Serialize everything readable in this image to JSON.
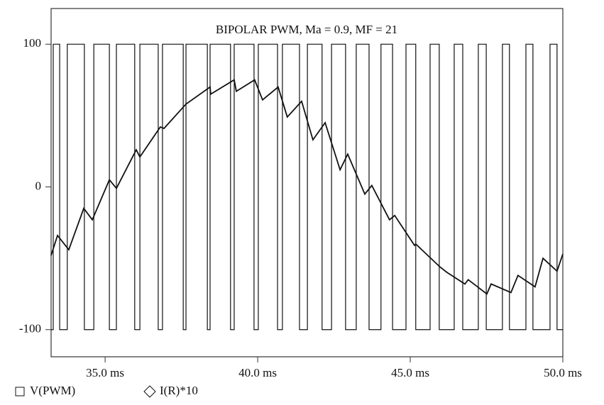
{
  "chart_data": {
    "type": "line",
    "title": "BIPOLAR PWM, Ma = 0.9, MF = 21",
    "xlim": [
      33.23,
      50
    ],
    "xticks": [
      {
        "value": 35,
        "label": "35.0 ms"
      },
      {
        "value": 40,
        "label": "40.0 ms"
      },
      {
        "value": 45,
        "label": "45.0 ms"
      },
      {
        "value": 50,
        "label": "50.0 ms"
      }
    ],
    "ylim": [
      -119,
      125
    ],
    "yticks": [
      100,
      0,
      -100
    ],
    "series": [
      {
        "name": "V(PWM)",
        "color": "#111111",
        "marker": "square",
        "x": [
          33.23,
          33.3,
          33.3,
          33.51,
          33.51,
          33.76,
          33.76,
          34.32,
          34.32,
          34.63,
          34.63,
          35.14,
          35.14,
          35.37,
          35.37,
          35.97,
          35.97,
          36.14,
          36.14,
          36.74,
          36.74,
          36.88,
          36.88,
          37.56,
          37.56,
          37.65,
          37.65,
          38.35,
          38.35,
          38.44,
          38.44,
          39.11,
          39.11,
          39.23,
          39.23,
          39.88,
          39.88,
          40.02,
          40.02,
          40.65,
          40.65,
          40.81,
          40.81,
          41.37,
          41.37,
          41.63,
          41.63,
          42.11,
          42.11,
          42.42,
          42.42,
          42.88,
          42.88,
          43.23,
          43.23,
          43.65,
          43.65,
          44.04,
          44.04,
          44.42,
          44.42,
          44.86,
          44.86,
          45.18,
          45.18,
          45.65,
          45.65,
          45.95,
          45.95,
          46.44,
          46.44,
          46.72,
          46.72,
          47.23,
          47.23,
          47.49,
          47.49,
          48.02,
          48.02,
          48.25,
          48.25,
          48.79,
          48.79,
          49.02,
          49.02,
          49.58,
          49.58,
          49.81,
          49.81,
          50
        ],
        "values": [
          -100,
          -100,
          100,
          100,
          -100,
          -100,
          100,
          100,
          -100,
          -100,
          100,
          100,
          -100,
          -100,
          100,
          100,
          -100,
          -100,
          100,
          100,
          -100,
          -100,
          100,
          100,
          -100,
          -100,
          100,
          100,
          -100,
          -100,
          100,
          100,
          -100,
          -100,
          100,
          100,
          -100,
          -100,
          100,
          100,
          -100,
          -100,
          100,
          100,
          -100,
          -100,
          100,
          100,
          -100,
          -100,
          100,
          100,
          -100,
          -100,
          100,
          100,
          -100,
          -100,
          100,
          100,
          -100,
          -100,
          100,
          100,
          -100,
          -100,
          100,
          100,
          -100,
          -100,
          100,
          100,
          -100,
          -100,
          100,
          100,
          -100,
          -100,
          100,
          100,
          -100,
          -100,
          100,
          100,
          -100,
          -100,
          100,
          100,
          -100,
          -100
        ]
      },
      {
        "name": "I(R)*10",
        "color": "#111111",
        "marker": "diamond",
        "x": [
          33.23,
          33.44,
          33.81,
          34.3,
          34.58,
          35.14,
          35.37,
          36.02,
          36.14,
          36.81,
          36.93,
          37.65,
          38.44,
          38.46,
          39.23,
          39.3,
          39.9,
          40.16,
          40.67,
          40.97,
          41.44,
          41.81,
          42.21,
          42.7,
          42.95,
          43.51,
          43.74,
          44.32,
          44.49,
          45.14,
          45.18,
          45.97,
          46.21,
          46.79,
          46.9,
          47.51,
          47.65,
          48.3,
          48.53,
          49.09,
          49.35,
          49.81,
          50.0
        ],
        "values": [
          -48,
          -34,
          -44,
          -15,
          -23,
          5,
          -1,
          26,
          21,
          42,
          41,
          58,
          70,
          65,
          75,
          67,
          75,
          61,
          70,
          49,
          60,
          33,
          45,
          12,
          23,
          -5,
          1,
          -23,
          -20,
          -41,
          -40,
          -56,
          -60,
          -68,
          -65,
          -75,
          -68,
          -74,
          -62,
          -70,
          -50,
          -59,
          -47
        ]
      }
    ]
  }
}
